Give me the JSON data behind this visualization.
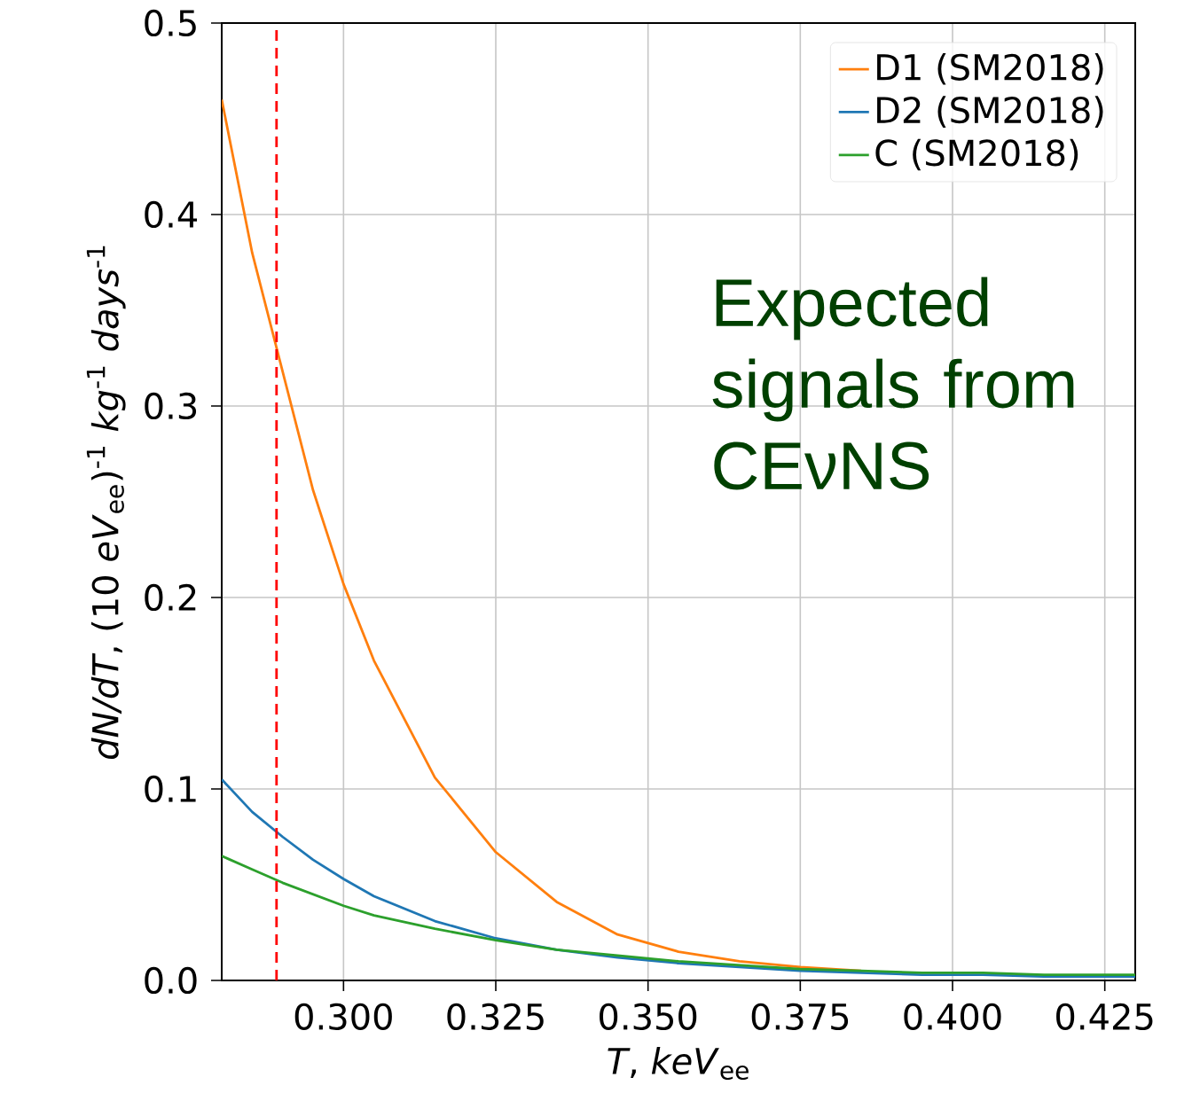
{
  "chart_data": {
    "type": "line",
    "xlabel": "*T*, *keV*$_{ee}$",
    "ylabel": "*dN/dT*, (10 *eV*$_{ee}$)$^{-1}$ *kg*$^{-1}$ *days*$^{-1}$",
    "x": [
      0.28,
      0.285,
      0.29,
      0.295,
      0.3,
      0.305,
      0.315,
      0.325,
      0.335,
      0.345,
      0.355,
      0.365,
      0.375,
      0.385,
      0.395,
      0.405,
      0.415,
      0.425,
      0.43
    ],
    "series": [
      {
        "name": "D1 (SM2018)",
        "color": "#ff7f0e",
        "values": [
          0.46,
          0.38,
          0.318,
          0.256,
          0.207,
          0.167,
          0.106,
          0.067,
          0.041,
          0.024,
          0.015,
          0.01,
          0.007,
          0.005,
          null,
          null,
          null,
          null,
          null
        ]
      },
      {
        "name": "D2 (SM2018)",
        "color": "#1f77b4",
        "values": [
          0.105,
          0.088,
          0.075,
          0.063,
          0.053,
          0.044,
          0.031,
          0.022,
          0.016,
          0.012,
          0.009,
          0.007,
          0.005,
          0.004,
          0.003,
          0.003,
          0.002,
          0.002,
          0.002
        ]
      },
      {
        "name": "C (SM2018)",
        "color": "#2ca02c",
        "values": [
          0.065,
          0.058,
          0.051,
          0.045,
          0.039,
          0.034,
          0.027,
          0.021,
          0.016,
          0.013,
          0.01,
          0.008,
          0.006,
          0.005,
          0.004,
          0.004,
          0.003,
          0.003,
          0.003
        ]
      }
    ],
    "xlim": [
      0.28,
      0.43
    ],
    "ylim": [
      0,
      0.5
    ],
    "xticks": [
      {
        "value": 0.3,
        "label": "0.300"
      },
      {
        "value": 0.325,
        "label": "0.325"
      },
      {
        "value": 0.35,
        "label": "0.350"
      },
      {
        "value": 0.375,
        "label": "0.375"
      },
      {
        "value": 0.4,
        "label": "0.400"
      },
      {
        "value": 0.425,
        "label": "0.425"
      }
    ],
    "yticks": [
      {
        "value": 0,
        "label": "0.0"
      },
      0.1,
      0.2,
      0.3,
      0.4,
      0.5
    ],
    "ref_lines": [
      {
        "axis": "x",
        "value": 0.289,
        "color": "#ff0000",
        "line_style": "dashed"
      }
    ],
    "annotations": [
      "Expected signals from CEνNS"
    ],
    "grid": true,
    "legend": "top right",
    "marker": "none",
    "line_style": "solid"
  }
}
